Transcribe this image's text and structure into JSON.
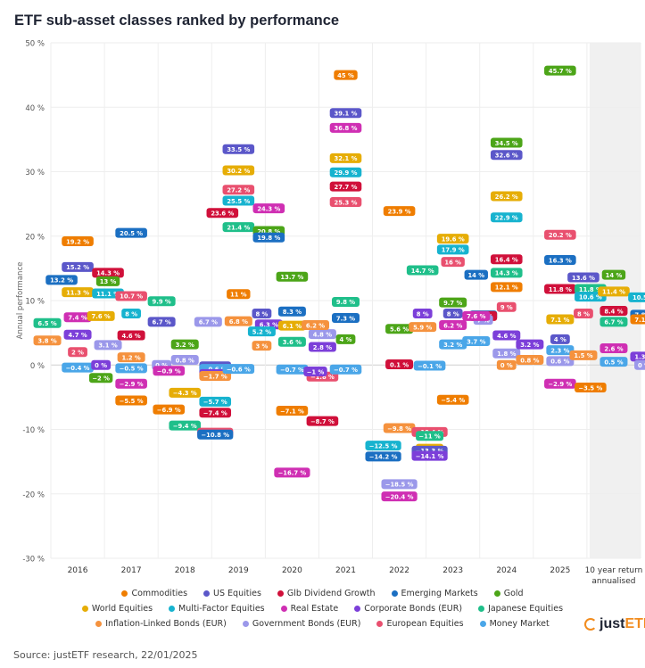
{
  "title": "ETF sub-asset classes ranked by performance",
  "source": "Source: justETF research, 22/01/2025",
  "logo": {
    "prefix": "just",
    "suffix": "ETF"
  },
  "chart_data": {
    "type": "scatter",
    "title": "ETF sub-asset classes ranked by performance",
    "ylabel": "Annual performance",
    "xlabel": "",
    "ylim": [
      -30,
      50
    ],
    "yticks": [
      -30,
      -20,
      -10,
      0,
      10,
      20,
      30,
      40,
      50
    ],
    "ytick_labels": [
      "-30 %",
      "-20 %",
      "-10 %",
      "0 %",
      "10 %",
      "20 %",
      "30 %",
      "40 %",
      "50 %"
    ],
    "grid": true,
    "legend_position": "bottom",
    "categories": [
      "2016",
      "2017",
      "2018",
      "2019",
      "2020",
      "2021",
      "2022",
      "2023",
      "2024",
      "2025",
      "10 year return annualised"
    ],
    "category_labels": [
      [
        "2016"
      ],
      [
        "2017"
      ],
      [
        "2018"
      ],
      [
        "2019"
      ],
      [
        "2020"
      ],
      [
        "2021"
      ],
      [
        "2022"
      ],
      [
        "2023"
      ],
      [
        "2024"
      ],
      [
        "2025"
      ],
      [
        "10 year return",
        "annualised"
      ]
    ],
    "series": [
      {
        "name": "Commodities",
        "color": "#ef7d00",
        "values": [
          19.2,
          -5.5,
          -6.9,
          11,
          -7.1,
          45,
          23.9,
          -5.4,
          12.1,
          -3.5,
          7.1
        ]
      },
      {
        "name": "US Equities",
        "color": "#5b57c9",
        "values": [
          15.2,
          6.7,
          -0.2,
          33.5,
          8,
          39.1,
          -13.3,
          8,
          32.6,
          4,
          13.6
        ]
      },
      {
        "name": "Glb Dividend Growth",
        "color": "#d0103a",
        "values": [
          14.3,
          4.6,
          -7.4,
          23.6,
          -8.7,
          27.7,
          0.1,
          7.6,
          16.4,
          11.8,
          8.4
        ]
      },
      {
        "name": "Emerging Markets",
        "color": "#1b6fc2",
        "values": [
          13.2,
          20.5,
          -10.8,
          19.8,
          8.3,
          7.3,
          -14.2,
          7.7,
          14,
          16.3,
          7.8
        ]
      },
      {
        "name": "Gold",
        "color": "#4ca518",
        "values": [
          13,
          -2,
          3.2,
          20.8,
          13.7,
          4,
          5.6,
          9.7,
          34.5,
          45.7,
          14
        ]
      },
      {
        "name": "World Equities",
        "color": "#e6ad06",
        "values": [
          11.3,
          7.6,
          -4.3,
          30.2,
          6.1,
          32.1,
          -13,
          19.6,
          26.2,
          7.1,
          11.4
        ]
      },
      {
        "name": "Multi-Factor Equities",
        "color": "#17b3cf",
        "values": [
          11.1,
          8,
          -5.7,
          25.5,
          5.2,
          29.9,
          -12.5,
          17.9,
          22.9,
          10.6,
          10.5
        ]
      },
      {
        "name": "Real Estate",
        "color": "#cf2fb3",
        "values": [
          7.4,
          -2.9,
          -0.9,
          24.3,
          -16.7,
          36.8,
          -20.4,
          6.2,
          7.6,
          -2.9,
          2.6
        ]
      },
      {
        "name": "Corporate Bonds (EUR)",
        "color": "#7c3fd9",
        "values": [
          4.7,
          0,
          -1.4,
          6.3,
          2.8,
          -1,
          -14.1,
          8,
          4.6,
          3.2,
          1.3
        ]
      },
      {
        "name": "Japanese Equities",
        "color": "#1fbf8a",
        "values": [
          6.5,
          9.9,
          -9.4,
          21.4,
          3.6,
          9.8,
          -11,
          14.7,
          14.3,
          11.8,
          6.7
        ]
      },
      {
        "name": "Inflation-Linked Bonds (EUR)",
        "color": "#f5923e",
        "values": [
          3.8,
          1.2,
          -1.7,
          6.8,
          3,
          6.2,
          -9.8,
          5.9,
          0,
          0.8,
          1.5
        ]
      },
      {
        "name": "Government Bonds (EUR)",
        "color": "#9b98ea",
        "values": [
          3.1,
          0,
          0.8,
          6.7,
          4.8,
          null,
          -18.5,
          7,
          1.8,
          0.6,
          0
        ]
      },
      {
        "name": "European Equities",
        "color": "#e9506f",
        "values": [
          2,
          10.7,
          -10.5,
          27.2,
          -1.8,
          25.3,
          -10.4,
          16,
          9,
          20.2,
          8
        ]
      },
      {
        "name": "Money Market",
        "color": "#4aa6e8",
        "values": [
          -0.4,
          -0.5,
          -0.6,
          -0.6,
          -0.7,
          -0.7,
          -0.1,
          3.2,
          3.7,
          2.3,
          0.5
        ]
      }
    ]
  },
  "legend_rows": [
    [
      0,
      1,
      2,
      3,
      4
    ],
    [
      5,
      6,
      7,
      8,
      9
    ],
    [
      10,
      11,
      12,
      13
    ]
  ]
}
